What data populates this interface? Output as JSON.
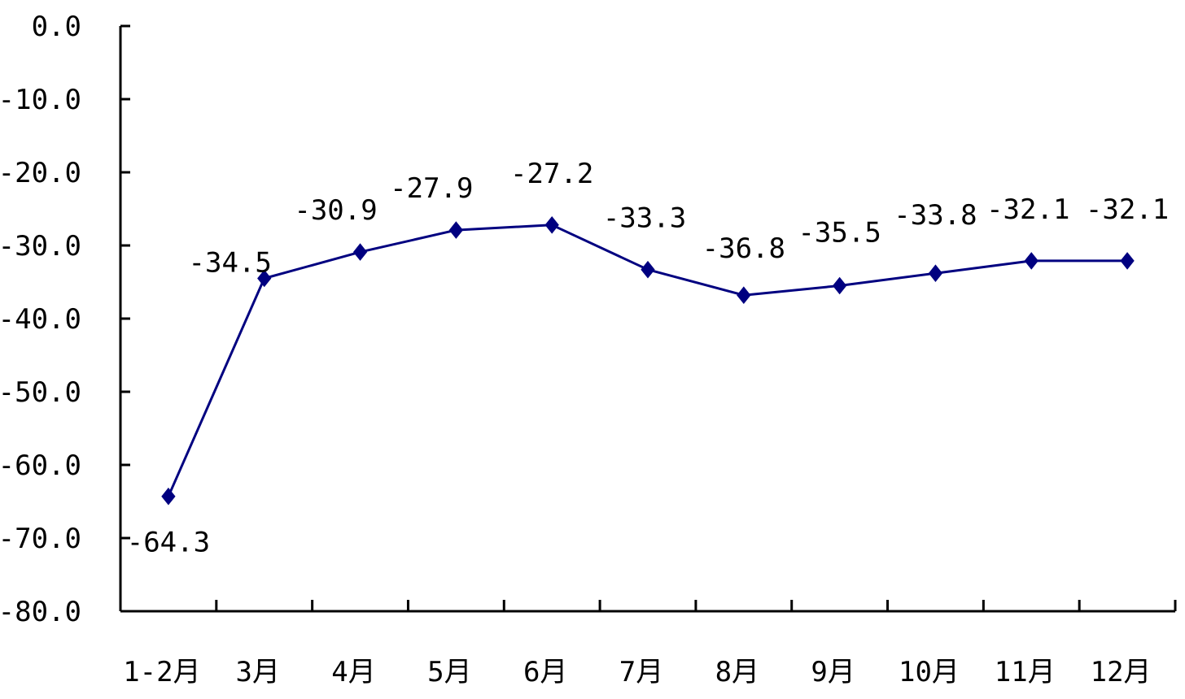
{
  "chart_data": {
    "type": "line",
    "title": "",
    "xlabel": "",
    "ylabel": "",
    "categories": [
      "1-2月",
      "3月",
      "4月",
      "5月",
      "6月",
      "7月",
      "8月",
      "9月",
      "10月",
      "11月",
      "12月"
    ],
    "series": [
      {
        "values": [
          -64.3,
          -34.5,
          -30.9,
          -27.9,
          -27.2,
          -33.3,
          -36.8,
          -35.5,
          -33.8,
          -32.1,
          -32.1
        ],
        "data_labels": [
          "-64.3",
          "-34.5",
          "-30.9",
          "-27.9",
          "-27.2",
          "-33.3",
          "-36.8",
          "-35.5",
          "-33.8",
          "-32.1",
          "-32.1"
        ],
        "color": "#000080",
        "marker": "diamond"
      }
    ],
    "ylim": [
      -80,
      0
    ],
    "yticks": [
      0,
      -10,
      -20,
      -30,
      -40,
      -50,
      -60,
      -70,
      -80
    ],
    "ytick_labels": [
      "0.0",
      "-10.0",
      "-20.0",
      "-30.0",
      "-40.0",
      "-50.0",
      "-60.0",
      "-70.0",
      "-80.0"
    ],
    "grid": false,
    "legend": "none",
    "axis_color": "#000000",
    "background": "#ffffff"
  }
}
